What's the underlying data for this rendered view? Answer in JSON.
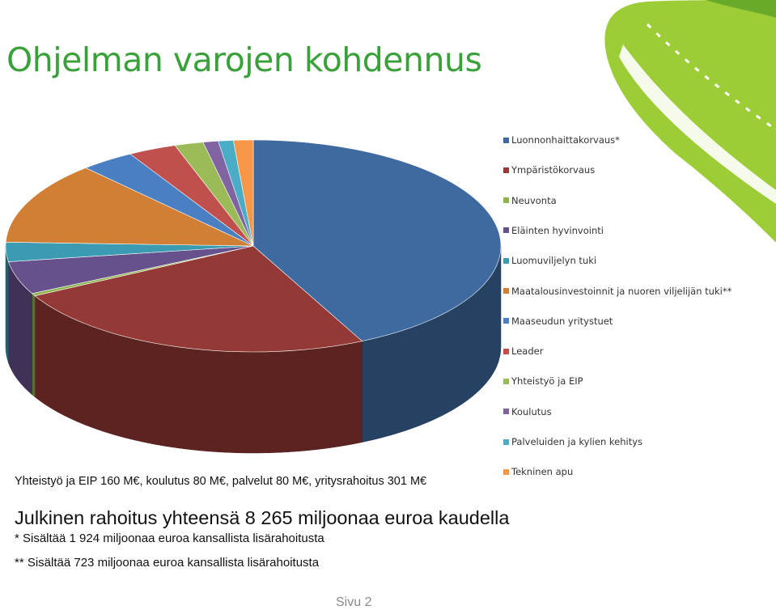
{
  "title": "Ohjelman varojen kohdennus",
  "chart_data": {
    "type": "pie",
    "title": "",
    "legend_position": "right",
    "slices": [
      {
        "label": "Luonnonhaittakorvaus*",
        "value": 43.4,
        "color": "#3e6aa0"
      },
      {
        "label": "Ympäristökorvaus",
        "value": 24.8,
        "color": "#953936"
      },
      {
        "label": "Neuvonta",
        "value": 0.4,
        "color": "#8eb54a"
      },
      {
        "label": "Eläinten hyvinvointi",
        "value": 5.1,
        "color": "#67518c"
      },
      {
        "label": "Luomuviljelyn tuki",
        "value": 3.0,
        "color": "#3b9bb1"
      },
      {
        "label": "Maatalousinvestoinnit ja nuoren viljelijän tuki**",
        "value": 12.8,
        "color": "#d07f34"
      },
      {
        "label": "Maaseudun yritystuet",
        "value": 3.6,
        "color": "#4a7fc1"
      },
      {
        "label": "Leader",
        "value": 3.2,
        "color": "#c0504d"
      },
      {
        "label": "Yhteistyö ja EIP",
        "value": 1.9,
        "color": "#9bbb59"
      },
      {
        "label": "Koulutus",
        "value": 1.0,
        "color": "#8064a2"
      },
      {
        "label": "Palveluiden ja kylien kehitys",
        "value": 1.0,
        "color": "#4bacc6"
      },
      {
        "label": "Tekninen apu",
        "value": 1.3,
        "color": "#f79646"
      }
    ]
  },
  "note": "Yhteistyö ja EIP 160 M€, koulutus 80 M€, palvelut 80 M€, yritysrahoitus 301 M€",
  "total": "Julkinen rahoitus yhteensä 8 265 miljoonaa euroa kaudella",
  "footnote1": "*  Sisältää 1 924 miljoonaa euroa kansallista lisärahoitusta",
  "footnote2": "** Sisältää    723 miljoonaa euroa kansallista lisärahoitusta",
  "page": "Sivu 2",
  "brand_colors": {
    "green_dark": "#3aa13a",
    "green_light": "#9ccc36"
  }
}
